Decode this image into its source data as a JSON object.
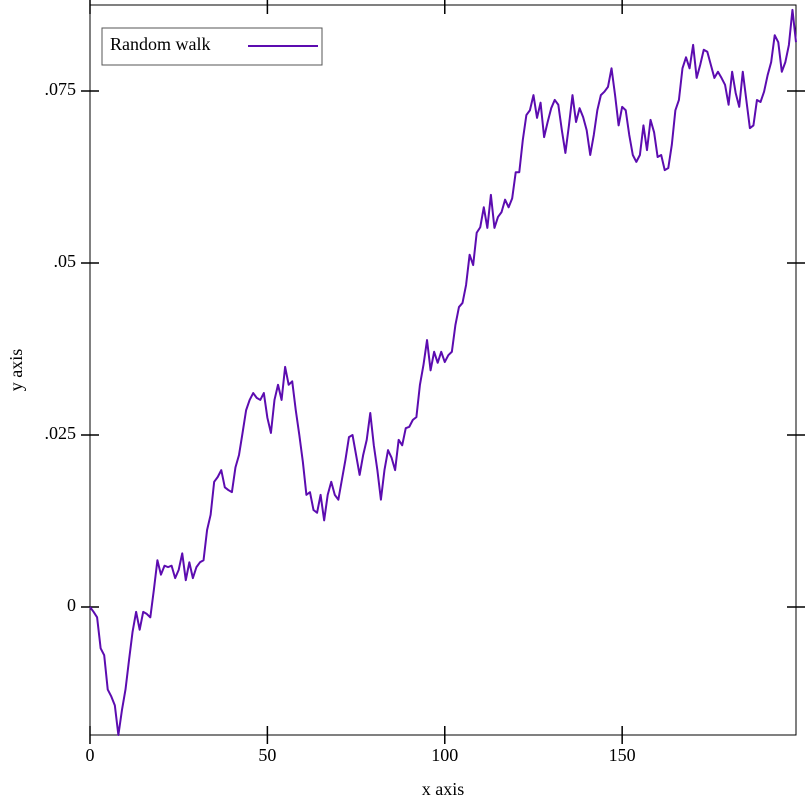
{
  "chart_data": {
    "type": "line",
    "xlabel": "x axis",
    "ylabel": "y axis",
    "x": [
      0,
      1,
      2,
      3,
      4,
      5,
      6,
      7,
      8,
      9,
      10,
      11,
      12,
      13,
      14,
      15,
      16,
      17,
      18,
      19,
      20,
      21,
      22,
      23,
      24,
      25,
      26,
      27,
      28,
      29,
      30,
      31,
      32,
      33,
      34,
      35,
      36,
      37,
      38,
      39,
      40,
      41,
      42,
      43,
      44,
      45,
      46,
      47,
      48,
      49,
      50,
      51,
      52,
      53,
      54,
      55,
      56,
      57,
      58,
      59,
      60,
      61,
      62,
      63,
      64,
      65,
      66,
      67,
      68,
      69,
      70,
      71,
      72,
      73,
      74,
      75,
      76,
      77,
      78,
      79,
      80,
      81,
      82,
      83,
      84,
      85,
      86,
      87,
      88,
      89,
      90,
      91,
      92,
      93,
      94,
      95,
      96,
      97,
      98,
      99,
      100,
      101,
      102,
      103,
      104,
      105,
      106,
      107,
      108,
      109,
      110,
      111,
      112,
      113,
      114,
      115,
      116,
      117,
      118,
      119,
      120,
      121,
      122,
      123,
      124,
      125,
      126,
      127,
      128,
      129,
      130,
      131,
      132,
      133,
      134,
      135,
      136,
      137,
      138,
      139,
      140,
      141,
      142,
      143,
      144,
      145,
      146,
      147,
      148,
      149,
      150,
      151,
      152,
      153,
      154,
      155,
      156,
      157,
      158,
      159,
      160,
      161,
      162,
      163,
      164,
      165,
      166,
      167,
      168,
      169,
      170,
      171,
      172,
      173,
      174,
      175,
      176,
      177,
      178,
      179,
      180,
      181,
      182,
      183,
      184,
      185,
      186,
      187,
      188,
      189,
      190,
      191,
      192,
      193,
      194,
      195,
      196,
      197,
      198,
      199
    ],
    "series": [
      {
        "name": "Random walk",
        "color": "#5c0cb0",
        "values": [
          0,
          -0.0007,
          -0.0015,
          -0.006,
          -0.007,
          -0.012,
          -0.013,
          -0.0143,
          -0.0186,
          -0.015,
          -0.012,
          -0.0077,
          -0.0036,
          -0.0007,
          -0.0033,
          -0.0007,
          -0.001,
          -0.0015,
          0.0025,
          0.0068,
          0.0047,
          0.006,
          0.0058,
          0.006,
          0.0042,
          0.0054,
          0.0078,
          0.0039,
          0.0065,
          0.0042,
          0.0058,
          0.0065,
          0.0068,
          0.0112,
          0.0134,
          0.0182,
          0.0189,
          0.0199,
          0.0174,
          0.017,
          0.0167,
          0.0203,
          0.0221,
          0.0253,
          0.0286,
          0.0301,
          0.0311,
          0.0304,
          0.0301,
          0.0311,
          0.0275,
          0.0253,
          0.0301,
          0.0323,
          0.0301,
          0.0349,
          0.0323,
          0.0328,
          0.0286,
          0.025,
          0.0211,
          0.0163,
          0.0167,
          0.0141,
          0.0137,
          0.0163,
          0.0126,
          0.0163,
          0.0182,
          0.0163,
          0.0156,
          0.0185,
          0.0214,
          0.0247,
          0.025,
          0.0221,
          0.0192,
          0.0221,
          0.0243,
          0.0282,
          0.0235,
          0.0199,
          0.0156,
          0.0199,
          0.0228,
          0.0217,
          0.0199,
          0.0243,
          0.0235,
          0.026,
          0.0262,
          0.0272,
          0.0276,
          0.0323,
          0.0352,
          0.0388,
          0.0344,
          0.0371,
          0.0355,
          0.0371,
          0.0356,
          0.0366,
          0.0371,
          0.041,
          0.0436,
          0.0442,
          0.0468,
          0.0512,
          0.0497,
          0.0544,
          0.0552,
          0.0581,
          0.0551,
          0.0599,
          0.0551,
          0.0567,
          0.0574,
          0.0592,
          0.0581,
          0.0594,
          0.0632,
          0.0632,
          0.0679,
          0.0715,
          0.0722,
          0.0744,
          0.0711,
          0.0733,
          0.0683,
          0.0705,
          0.0725,
          0.0737,
          0.073,
          0.0693,
          0.066,
          0.07,
          0.0744,
          0.0705,
          0.0725,
          0.0712,
          0.0693,
          0.0657,
          0.0686,
          0.0722,
          0.0744,
          0.0749,
          0.0756,
          0.0783,
          0.0744,
          0.07,
          0.0727,
          0.0722,
          0.0686,
          0.0657,
          0.0647,
          0.0657,
          0.07,
          0.0664,
          0.0708,
          0.069,
          0.0654,
          0.0657,
          0.0635,
          0.0638,
          0.0672,
          0.0722,
          0.0737,
          0.0783,
          0.0799,
          0.0783,
          0.0817,
          0.0769,
          0.0788,
          0.081,
          0.0807,
          0.0788,
          0.0769,
          0.0778,
          0.0769,
          0.0759,
          0.073,
          0.0778,
          0.0747,
          0.0727,
          0.0778,
          0.0737,
          0.0696,
          0.07,
          0.0737,
          0.0734,
          0.0749,
          0.0773,
          0.0792,
          0.0831,
          0.0821,
          0.0778,
          0.0792,
          0.0817,
          0.0868,
          0.0821
        ]
      }
    ],
    "xlim": [
      0,
      199
    ],
    "ylim": [
      -0.0186,
      0.0875
    ],
    "xticks": [
      0,
      50,
      100,
      150
    ],
    "yticks": [
      0,
      {
        "value": 0.025,
        "label": ".025"
      },
      {
        "value": 0.05,
        "label": ".05"
      },
      {
        "value": 0.075,
        "label": ".075"
      }
    ],
    "legend": "top-left"
  }
}
